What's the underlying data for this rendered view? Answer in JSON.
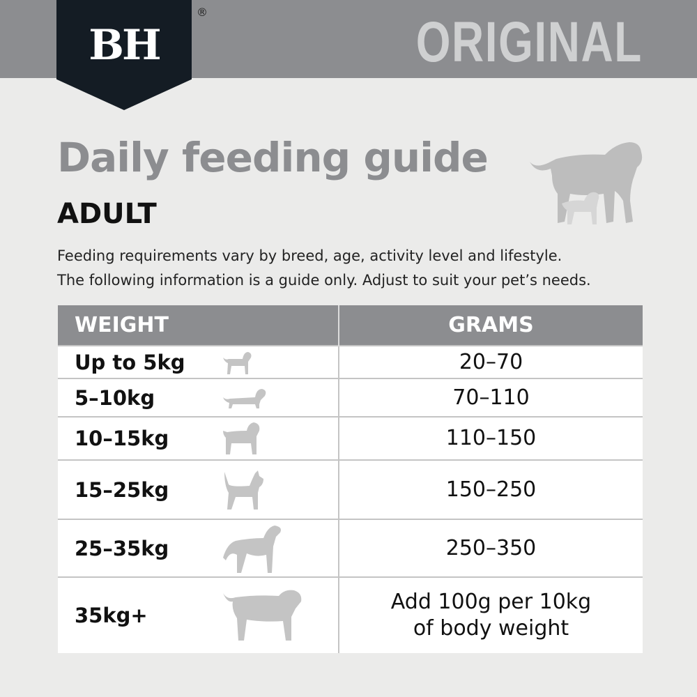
{
  "brand": {
    "logo": "BH",
    "registered": "®",
    "variant": "ORIGINAL"
  },
  "title": "Daily feeding guide",
  "subtitle": "ADULT",
  "intro": [
    "Feeding requirements vary by breed, age, activity level and lifestyle.",
    "The following information is a guide only. Adjust to suit your pet’s needs."
  ],
  "table": {
    "headers": [
      "WEIGHT",
      "GRAMS"
    ],
    "rows": [
      {
        "weight": "Up to 5kg",
        "grams": "20–70",
        "icon": "small-dog-icon"
      },
      {
        "weight": "5–10kg",
        "grams": "70–110",
        "icon": "dachshund-icon"
      },
      {
        "weight": "10–15kg",
        "grams": "110–150",
        "icon": "bulldog-icon"
      },
      {
        "weight": "15–25kg",
        "grams": "150–250",
        "icon": "terrier-icon"
      },
      {
        "weight": "25–35kg",
        "grams": "250–350",
        "icon": "great-dane-icon"
      },
      {
        "weight": "35kg+",
        "grams": [
          "Add 100g per 10kg",
          "of body weight"
        ],
        "icon": "mastiff-icon"
      }
    ]
  },
  "colors": {
    "banner": "#8c8d90",
    "logo": "#141c24",
    "icon": "#c4c4c4"
  }
}
